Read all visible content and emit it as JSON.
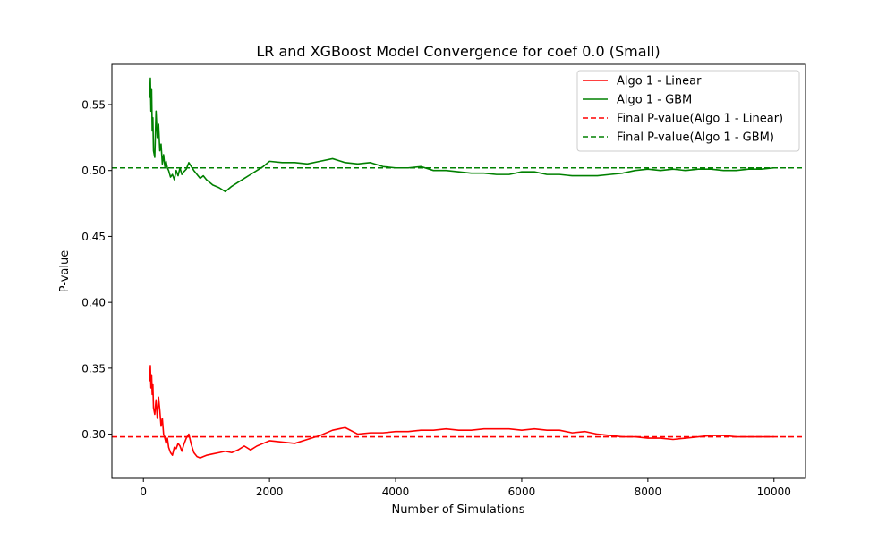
{
  "chart_data": {
    "type": "line",
    "title": "LR and XGBoost Model Convergence for coef 0.0 (Small)",
    "xlabel": "Number of Simulations",
    "ylabel": "P-value",
    "xlim": [
      -500,
      10500
    ],
    "ylim": [
      0.2665,
      0.5805
    ],
    "xticks": [
      0,
      2000,
      4000,
      6000,
      8000,
      10000
    ],
    "xtick_labels": [
      "0",
      "2000",
      "4000",
      "6000",
      "8000",
      "10000"
    ],
    "yticks": [
      0.3,
      0.35,
      0.4,
      0.45,
      0.5,
      0.55
    ],
    "ytick_labels": [
      "0.30",
      "0.35",
      "0.40",
      "0.45",
      "0.50",
      "0.55"
    ],
    "grid": false,
    "legend_position": "top-right",
    "series": [
      {
        "name": "Algo 1 - Linear",
        "style": "solid",
        "color": "#ff0000",
        "x": [
          100,
          110,
          120,
          130,
          140,
          150,
          160,
          180,
          200,
          220,
          240,
          260,
          280,
          300,
          320,
          340,
          360,
          380,
          400,
          430,
          460,
          490,
          520,
          550,
          580,
          610,
          640,
          680,
          720,
          760,
          800,
          850,
          900,
          950,
          1000,
          1100,
          1200,
          1300,
          1400,
          1500,
          1600,
          1700,
          1800,
          1900,
          2000,
          2200,
          2400,
          2600,
          2800,
          3000,
          3200,
          3400,
          3600,
          3800,
          4000,
          4200,
          4400,
          4600,
          4800,
          5000,
          5200,
          5400,
          5600,
          5800,
          6000,
          6200,
          6400,
          6600,
          6800,
          7000,
          7200,
          7400,
          7600,
          7800,
          8000,
          8200,
          8400,
          8600,
          8800,
          9000,
          9200,
          9400,
          9600,
          9800,
          10000
        ],
        "y": [
          0.34,
          0.352,
          0.335,
          0.345,
          0.33,
          0.338,
          0.32,
          0.315,
          0.326,
          0.312,
          0.328,
          0.318,
          0.306,
          0.312,
          0.3,
          0.297,
          0.293,
          0.297,
          0.29,
          0.286,
          0.284,
          0.29,
          0.289,
          0.293,
          0.291,
          0.287,
          0.292,
          0.297,
          0.3,
          0.292,
          0.286,
          0.283,
          0.282,
          0.283,
          0.284,
          0.285,
          0.286,
          0.287,
          0.286,
          0.288,
          0.291,
          0.288,
          0.291,
          0.293,
          0.295,
          0.294,
          0.293,
          0.296,
          0.299,
          0.303,
          0.305,
          0.3,
          0.301,
          0.301,
          0.302,
          0.302,
          0.303,
          0.303,
          0.304,
          0.303,
          0.303,
          0.304,
          0.304,
          0.304,
          0.303,
          0.304,
          0.303,
          0.303,
          0.301,
          0.302,
          0.3,
          0.299,
          0.298,
          0.298,
          0.297,
          0.297,
          0.296,
          0.297,
          0.298,
          0.299,
          0.299,
          0.298,
          0.298,
          0.298,
          0.298
        ]
      },
      {
        "name": "Algo 1 - GBM",
        "style": "solid",
        "color": "#008000",
        "x": [
          100,
          110,
          120,
          130,
          140,
          150,
          160,
          180,
          200,
          220,
          240,
          260,
          280,
          300,
          320,
          340,
          360,
          380,
          400,
          430,
          460,
          490,
          520,
          550,
          580,
          610,
          640,
          680,
          720,
          760,
          800,
          850,
          900,
          950,
          1000,
          1100,
          1200,
          1300,
          1400,
          1500,
          1600,
          1700,
          1800,
          1900,
          2000,
          2200,
          2400,
          2600,
          2800,
          3000,
          3200,
          3400,
          3600,
          3800,
          4000,
          4200,
          4400,
          4600,
          4800,
          5000,
          5200,
          5400,
          5600,
          5800,
          6000,
          6200,
          6400,
          6600,
          6800,
          7000,
          7200,
          7400,
          7600,
          7800,
          8000,
          8200,
          8400,
          8600,
          8800,
          9000,
          9200,
          9400,
          9600,
          9800,
          10000
        ],
        "y": [
          0.555,
          0.57,
          0.545,
          0.562,
          0.53,
          0.54,
          0.515,
          0.51,
          0.545,
          0.525,
          0.535,
          0.515,
          0.52,
          0.505,
          0.512,
          0.503,
          0.507,
          0.502,
          0.5,
          0.495,
          0.497,
          0.493,
          0.5,
          0.496,
          0.502,
          0.497,
          0.499,
          0.501,
          0.506,
          0.503,
          0.5,
          0.497,
          0.494,
          0.496,
          0.493,
          0.489,
          0.487,
          0.484,
          0.488,
          0.491,
          0.494,
          0.497,
          0.5,
          0.503,
          0.507,
          0.506,
          0.506,
          0.505,
          0.507,
          0.509,
          0.506,
          0.505,
          0.506,
          0.503,
          0.502,
          0.502,
          0.503,
          0.5,
          0.5,
          0.499,
          0.498,
          0.498,
          0.497,
          0.497,
          0.499,
          0.499,
          0.497,
          0.497,
          0.496,
          0.496,
          0.496,
          0.497,
          0.498,
          0.5,
          0.501,
          0.5,
          0.501,
          0.5,
          0.501,
          0.501,
          0.5,
          0.5,
          0.501,
          0.501,
          0.502
        ]
      },
      {
        "name": "Final P-value(Algo 1 - Linear)",
        "style": "dashed",
        "color": "#ff0000",
        "y_const": 0.298
      },
      {
        "name": "Final P-value(Algo 1 - GBM)",
        "style": "dashed",
        "color": "#008000",
        "y_const": 0.502
      }
    ]
  }
}
